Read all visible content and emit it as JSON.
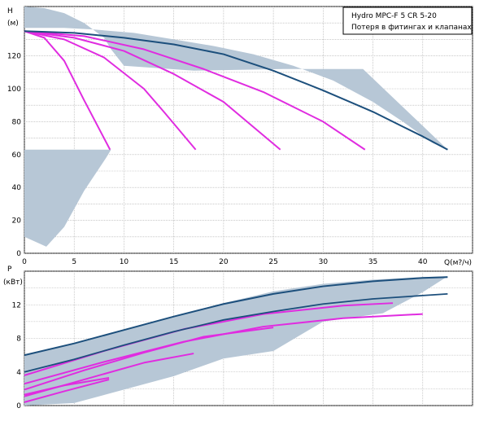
{
  "legend": {
    "title": "Hydro MPC-F 5 CR 5-20",
    "subtitle": "Потеря в фитингах и клапанах"
  },
  "colors": {
    "envelope_fill": "#b7c7d6",
    "max_curve": "#1c4f7c",
    "speed_curves": "#e02ce0",
    "grid": "#a9a9a9"
  },
  "chart_data": [
    {
      "type": "line",
      "name": "head",
      "ylabel_line1": "H",
      "ylabel_line2": "(м)",
      "xlabel": "Q(м?/ч)",
      "xlim": [
        0,
        45
      ],
      "ylim": [
        0,
        150
      ],
      "xticks": [
        0,
        5,
        10,
        15,
        20,
        25,
        30,
        35,
        40
      ],
      "yticks": [
        0,
        20,
        40,
        60,
        80,
        100,
        120
      ],
      "grid": true,
      "envelope": {
        "x": [
          0,
          2,
          4,
          6,
          8,
          8.7,
          10,
          17,
          26,
          34,
          42.5,
          41,
          38,
          35,
          31,
          27,
          23,
          19,
          15,
          11,
          7,
          4,
          1.8,
          0
        ],
        "y": [
          150,
          149,
          146,
          140,
          131,
          124,
          114,
          111,
          112,
          112,
          63,
          67,
          80,
          92,
          105,
          114,
          121,
          126,
          130,
          134,
          136,
          137,
          137,
          137
        ]
      },
      "envelope_low": {
        "x": [
          0,
          2.2,
          4,
          6,
          8.2,
          8.7
        ],
        "y": [
          10,
          4,
          16,
          38,
          58,
          63
        ]
      },
      "max_curve": {
        "x": [
          0,
          5,
          10,
          15,
          20,
          25,
          30,
          35,
          38,
          40,
          42.5
        ],
        "y": [
          135,
          134,
          131,
          127,
          121,
          111,
          99,
          86,
          77,
          71,
          63
        ]
      },
      "series": [
        {
          "x": [
            0,
            2,
            4,
            6,
            8.6
          ],
          "y": [
            135,
            131,
            117,
            93,
            63
          ]
        },
        {
          "x": [
            0,
            4,
            8,
            12,
            14,
            17.2
          ],
          "y": [
            135,
            130,
            119,
            100,
            86,
            63
          ]
        },
        {
          "x": [
            0,
            5,
            10,
            15,
            20,
            25.7
          ],
          "y": [
            135,
            131,
            123,
            109,
            92,
            63
          ]
        },
        {
          "x": [
            0,
            6,
            12,
            18,
            24,
            30,
            34.2
          ],
          "y": [
            135,
            132,
            124,
            112,
            98,
            80,
            63
          ]
        }
      ]
    },
    {
      "type": "line",
      "name": "power",
      "ylabel_line1": "P",
      "ylabel_line2": "(кВт)",
      "xlim": [
        0,
        45
      ],
      "ylim": [
        0,
        16
      ],
      "yticks": [
        0,
        4,
        8,
        12
      ],
      "grid": true,
      "envelope": {
        "x": [
          0,
          5,
          10,
          15,
          20,
          25,
          30,
          35,
          40,
          42.5,
          40,
          36,
          30,
          25,
          20,
          15,
          10,
          5,
          0
        ],
        "y": [
          6,
          7.4,
          9,
          10.5,
          12.2,
          13.6,
          14.5,
          15.0,
          15.3,
          15.4,
          13.5,
          11.0,
          10.0,
          6.5,
          5.6,
          3.5,
          1.9,
          0.3,
          0
        ]
      },
      "upper_curve": {
        "x": [
          0,
          5,
          10,
          15,
          20,
          25,
          30,
          35,
          40,
          42.5
        ],
        "y": [
          6.0,
          7.4,
          9.0,
          10.6,
          12.1,
          13.3,
          14.2,
          14.8,
          15.2,
          15.3
        ]
      },
      "second_curve": {
        "x": [
          0,
          5,
          10,
          15,
          20,
          25,
          30,
          35,
          40,
          42.5
        ],
        "y": [
          4.0,
          5.5,
          7.2,
          8.8,
          10.2,
          11.2,
          12.1,
          12.7,
          13.1,
          13.3
        ]
      },
      "series": [
        {
          "x": [
            0,
            8,
            16,
            24,
            32,
            37
          ],
          "y": [
            3.6,
            6.5,
            9.1,
            10.9,
            11.9,
            12.2
          ]
        },
        {
          "x": [
            0,
            8,
            16,
            24,
            32,
            40
          ],
          "y": [
            2.6,
            5.2,
            7.6,
            9.4,
            10.4,
            10.9
          ]
        },
        {
          "x": [
            0,
            6,
            12,
            18,
            25
          ],
          "y": [
            1.9,
            4.2,
            6.3,
            8.2,
            9.3
          ]
        },
        {
          "x": [
            0,
            6,
            12,
            17
          ],
          "y": [
            1.1,
            3.1,
            5.1,
            6.2
          ]
        },
        {
          "x": [
            0,
            4,
            8.5
          ],
          "y": [
            0.4,
            1.7,
            3.1
          ]
        },
        {
          "x": [
            0,
            4,
            8.5
          ],
          "y": [
            1.3,
            2.4,
            3.3
          ]
        }
      ]
    }
  ]
}
